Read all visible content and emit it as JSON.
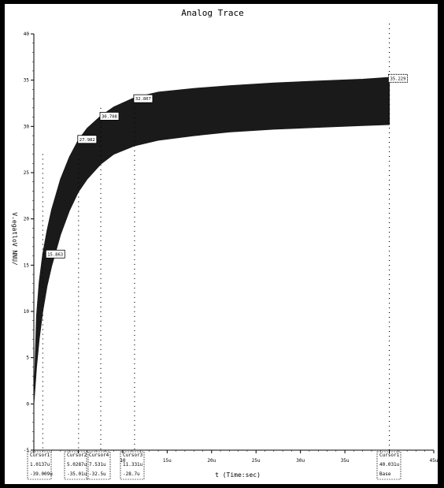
{
  "chart_data": {
    "type": "area",
    "title": "Analog Trace",
    "xlabel": "t (Time:sec)",
    "ylabel": "V.egatloV NNU/",
    "xlim": [
      0,
      45
    ],
    "ylim": [
      -5,
      40
    ],
    "x_ticks": [
      {
        "value": 15,
        "label": "15u"
      },
      {
        "value": 20,
        "label": "20u"
      },
      {
        "value": 25,
        "label": "25u"
      },
      {
        "value": 30,
        "label": "30u"
      },
      {
        "value": 35,
        "label": "35u"
      },
      {
        "value": 45,
        "label": "45u"
      }
    ],
    "x_tick_10_label": "10",
    "y_ticks": [
      {
        "value": 40,
        "label": "40"
      },
      {
        "value": 35,
        "label": "35"
      },
      {
        "value": 30,
        "label": "30"
      },
      {
        "value": 25,
        "label": "25"
      },
      {
        "value": 20,
        "label": "20"
      },
      {
        "value": 15,
        "label": "15"
      },
      {
        "value": 10,
        "label": "10"
      },
      {
        "value": 5,
        "label": "5"
      },
      {
        "value": 0,
        "label": "0"
      },
      {
        "value": -5,
        "label": "-5"
      }
    ],
    "series": [
      {
        "x": [
          0.0,
          0.3,
          0.6,
          1.0,
          1.5,
          2.0,
          3.0,
          4.0,
          5.0,
          6.0,
          7.5,
          9.0,
          11.3,
          14,
          18,
          22,
          27,
          32,
          37,
          40
        ],
        "upper": [
          0.0,
          9.5,
          13.2,
          16.2,
          18.8,
          21.0,
          24.3,
          26.7,
          28.5,
          29.8,
          31.1,
          32.1,
          33.1,
          33.7,
          34.1,
          34.4,
          34.7,
          34.9,
          35.1,
          35.3
        ],
        "lower": [
          0.0,
          4.0,
          7.0,
          10.0,
          12.8,
          14.9,
          18.3,
          20.9,
          22.9,
          24.3,
          25.9,
          27.0,
          27.9,
          28.5,
          29.0,
          29.4,
          29.7,
          29.9,
          30.1,
          30.2
        ]
      }
    ],
    "annotations": [
      {
        "x": 1.44,
        "y": 16.2,
        "label": "15.863"
      },
      {
        "x": 5.03,
        "y": 28.6,
        "label": "27.982"
      },
      {
        "x": 7.53,
        "y": 31.1,
        "label": "30.708"
      },
      {
        "x": 11.33,
        "y": 33.0,
        "label": "32.807"
      },
      {
        "x": 40.0,
        "y": 35.2,
        "label": "35.229"
      }
    ],
    "cursors": [
      {
        "x": 1.01,
        "name": "Cursor1",
        "time": "1.0137u",
        "delta": "-39.009u"
      },
      {
        "x": 5.03,
        "name": "Cursor2",
        "time": "5.0287u",
        "delta": "-35.01u"
      },
      {
        "x": 7.53,
        "name": "Cursor4",
        "time": "7.531u",
        "delta": "-32.5u"
      },
      {
        "x": 11.33,
        "name": "Cursor3",
        "time": "11.331u",
        "delta": "-28.7u"
      },
      {
        "x": 40.0,
        "name": "Cursor1",
        "time": "40.031u",
        "delta": "Base"
      }
    ],
    "grid": false,
    "legend": "none"
  }
}
